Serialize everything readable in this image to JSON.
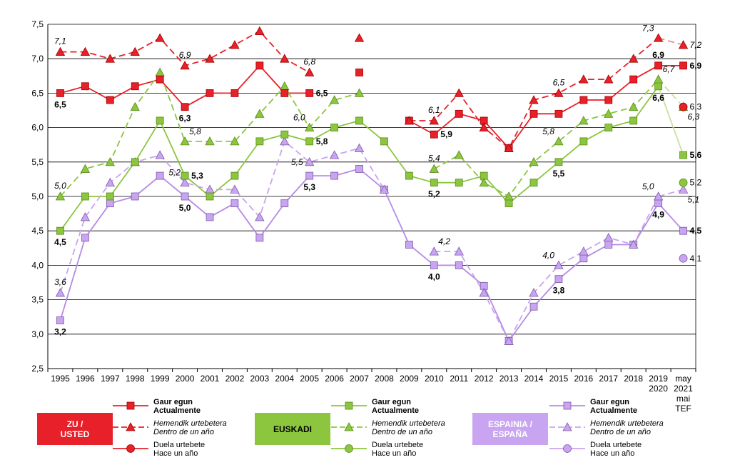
{
  "chart_data": {
    "type": "line",
    "ylim": [
      2.5,
      7.5
    ],
    "y_ticks": [
      "2,5",
      "3,0",
      "3,5",
      "4,0",
      "4,5",
      "5,0",
      "5,5",
      "6,0",
      "6,5",
      "7,0",
      "7,5"
    ],
    "categories": [
      "1995",
      "1996",
      "1997",
      "1998",
      "1999",
      "2000",
      "2001",
      "2002",
      "2003",
      "2004",
      "2005",
      "2006",
      "2007",
      "2008",
      "2009",
      "2010",
      "2011",
      "2012",
      "2013",
      "2014",
      "2015",
      "2016",
      "2017",
      "2018",
      "2019",
      "may"
    ],
    "category_sublabels": {
      "2019": "2020",
      "may": [
        "2021",
        "mai",
        "TEF"
      ]
    },
    "grid": "horizontal",
    "colors": {
      "zu": "#e8202a",
      "euskadi": "#8cc63f",
      "espainia": "#c9a4f0",
      "espainia_line": "#b48ae6",
      "euskadi_light": "#c9e0a3",
      "zu_light": "#f08a8a",
      "marker_edge": "#7a5aa8"
    },
    "series": [
      {
        "group": "zu",
        "kind": "current",
        "dash": false,
        "values": [
          6.5,
          6.6,
          6.4,
          6.6,
          6.7,
          6.3,
          6.5,
          6.5,
          6.9,
          6.5,
          6.5,
          null,
          6.8,
          null,
          6.1,
          5.9,
          6.2,
          6.1,
          5.7,
          6.2,
          6.2,
          6.4,
          6.4,
          6.7,
          6.9,
          6.9
        ]
      },
      {
        "group": "zu",
        "kind": "expected",
        "dash": true,
        "values": [
          7.1,
          7.1,
          7.0,
          7.1,
          7.3,
          6.9,
          7.0,
          7.2,
          7.4,
          7.0,
          6.8,
          null,
          7.3,
          null,
          6.1,
          6.1,
          6.5,
          6.0,
          5.7,
          6.4,
          6.5,
          6.7,
          6.7,
          7.0,
          7.3,
          7.2
        ]
      },
      {
        "group": "zu",
        "kind": "year_ago",
        "values": [
          null,
          null,
          null,
          null,
          null,
          null,
          null,
          null,
          null,
          null,
          null,
          null,
          null,
          null,
          null,
          null,
          null,
          null,
          null,
          null,
          null,
          null,
          null,
          null,
          null,
          6.3
        ]
      },
      {
        "group": "euskadi",
        "kind": "current",
        "dash": false,
        "values": [
          4.5,
          5.0,
          5.0,
          5.5,
          6.1,
          5.3,
          5.0,
          5.3,
          5.8,
          5.9,
          5.8,
          6.0,
          6.1,
          5.8,
          5.3,
          5.2,
          5.2,
          5.3,
          4.9,
          5.2,
          5.5,
          5.8,
          6.0,
          6.1,
          6.6,
          5.6
        ]
      },
      {
        "group": "euskadi",
        "kind": "expected",
        "dash": true,
        "values": [
          5.0,
          5.4,
          5.5,
          6.3,
          6.8,
          5.8,
          5.8,
          5.8,
          6.2,
          6.6,
          6.0,
          6.4,
          6.5,
          null,
          null,
          5.4,
          5.6,
          5.2,
          5.0,
          5.5,
          5.8,
          6.1,
          6.2,
          6.3,
          6.7,
          6.3
        ]
      },
      {
        "group": "euskadi",
        "kind": "year_ago",
        "values": [
          null,
          null,
          null,
          null,
          null,
          null,
          null,
          null,
          null,
          null,
          null,
          null,
          null,
          null,
          null,
          null,
          null,
          null,
          null,
          null,
          null,
          null,
          null,
          null,
          null,
          5.2
        ]
      },
      {
        "group": "espainia",
        "kind": "current",
        "dash": false,
        "values": [
          3.2,
          4.4,
          4.9,
          5.0,
          5.3,
          5.0,
          4.7,
          4.9,
          4.4,
          4.9,
          5.3,
          5.3,
          5.4,
          5.1,
          4.3,
          4.0,
          4.0,
          3.7,
          2.9,
          3.4,
          3.8,
          4.1,
          4.3,
          4.3,
          4.9,
          4.5
        ]
      },
      {
        "group": "espainia",
        "kind": "expected",
        "dash": true,
        "values": [
          3.6,
          4.7,
          5.2,
          5.5,
          5.6,
          5.2,
          5.1,
          5.1,
          4.7,
          5.8,
          5.5,
          5.6,
          5.7,
          5.1,
          null,
          4.2,
          4.2,
          3.6,
          2.9,
          3.6,
          4.0,
          4.2,
          4.4,
          4.3,
          5.0,
          5.1
        ]
      },
      {
        "group": "espainia",
        "kind": "year_ago",
        "values": [
          null,
          null,
          null,
          null,
          null,
          null,
          null,
          null,
          null,
          null,
          null,
          null,
          null,
          null,
          null,
          null,
          null,
          null,
          null,
          null,
          null,
          null,
          null,
          null,
          null,
          4.1
        ]
      }
    ],
    "data_labels": [
      {
        "group": "zu",
        "kind": "current",
        "i": 0,
        "text": "6,5",
        "pos": "below"
      },
      {
        "group": "zu",
        "kind": "current",
        "i": 5,
        "text": "6,3",
        "pos": "below"
      },
      {
        "group": "zu",
        "kind": "current",
        "i": 10,
        "text": "6,5",
        "pos": "right"
      },
      {
        "group": "zu",
        "kind": "current",
        "i": 15,
        "text": "5,9",
        "pos": "right"
      },
      {
        "group": "zu",
        "kind": "current",
        "i": 24,
        "text": "6,9",
        "pos": "above"
      },
      {
        "group": "zu",
        "kind": "current",
        "i": 25,
        "text": "6,9",
        "pos": "right"
      },
      {
        "group": "zu",
        "kind": "expected",
        "i": 0,
        "text": "7,1",
        "pos": "above"
      },
      {
        "group": "zu",
        "kind": "expected",
        "i": 5,
        "text": "6,9",
        "pos": "above"
      },
      {
        "group": "zu",
        "kind": "expected",
        "i": 10,
        "text": "6,8",
        "pos": "above"
      },
      {
        "group": "zu",
        "kind": "expected",
        "i": 15,
        "text": "6,1",
        "pos": "above"
      },
      {
        "group": "zu",
        "kind": "expected",
        "i": 20,
        "text": "6,5",
        "pos": "above"
      },
      {
        "group": "zu",
        "kind": "expected",
        "i": 24,
        "text": "7,3",
        "pos": "aboveleft"
      },
      {
        "group": "zu",
        "kind": "expected",
        "i": 25,
        "text": "7,2",
        "pos": "right"
      },
      {
        "group": "zu",
        "kind": "year_ago",
        "i": 25,
        "text": "6,3",
        "pos": "right"
      },
      {
        "group": "euskadi",
        "kind": "current",
        "i": 0,
        "text": "4,5",
        "pos": "below"
      },
      {
        "group": "euskadi",
        "kind": "current",
        "i": 5,
        "text": "5,3",
        "pos": "right"
      },
      {
        "group": "euskadi",
        "kind": "current",
        "i": 10,
        "text": "5,8",
        "pos": "right"
      },
      {
        "group": "euskadi",
        "kind": "current",
        "i": 15,
        "text": "5,2",
        "pos": "below"
      },
      {
        "group": "euskadi",
        "kind": "current",
        "i": 20,
        "text": "5,5",
        "pos": "below"
      },
      {
        "group": "euskadi",
        "kind": "current",
        "i": 24,
        "text": "6,6",
        "pos": "below"
      },
      {
        "group": "euskadi",
        "kind": "current",
        "i": 25,
        "text": "5,6",
        "pos": "right"
      },
      {
        "group": "euskadi",
        "kind": "expected",
        "i": 0,
        "text": "5,0",
        "pos": "above"
      },
      {
        "group": "euskadi",
        "kind": "expected",
        "i": 5,
        "text": "5,8",
        "pos": "aboveright"
      },
      {
        "group": "euskadi",
        "kind": "expected",
        "i": 10,
        "text": "6,0",
        "pos": "aboveleft"
      },
      {
        "group": "euskadi",
        "kind": "expected",
        "i": 15,
        "text": "5,4",
        "pos": "above"
      },
      {
        "group": "euskadi",
        "kind": "expected",
        "i": 20,
        "text": "5,8",
        "pos": "aboveleft"
      },
      {
        "group": "euskadi",
        "kind": "expected",
        "i": 24,
        "text": "6,7",
        "pos": "aboveright"
      },
      {
        "group": "euskadi",
        "kind": "expected",
        "i": 25,
        "text": "6,3",
        "pos": "belowright"
      },
      {
        "group": "euskadi",
        "kind": "year_ago",
        "i": 25,
        "text": "5,2",
        "pos": "right"
      },
      {
        "group": "espainia",
        "kind": "current",
        "i": 0,
        "text": "3,2",
        "pos": "below"
      },
      {
        "group": "espainia",
        "kind": "current",
        "i": 5,
        "text": "5,0",
        "pos": "below"
      },
      {
        "group": "espainia",
        "kind": "current",
        "i": 10,
        "text": "5,3",
        "pos": "below"
      },
      {
        "group": "espainia",
        "kind": "current",
        "i": 15,
        "text": "4,0",
        "pos": "below"
      },
      {
        "group": "espainia",
        "kind": "current",
        "i": 20,
        "text": "3,8",
        "pos": "below"
      },
      {
        "group": "espainia",
        "kind": "current",
        "i": 24,
        "text": "4,9",
        "pos": "below"
      },
      {
        "group": "espainia",
        "kind": "current",
        "i": 25,
        "text": "4,5",
        "pos": "right"
      },
      {
        "group": "espainia",
        "kind": "expected",
        "i": 0,
        "text": "3,6",
        "pos": "above"
      },
      {
        "group": "espainia",
        "kind": "expected",
        "i": 5,
        "text": "5,2",
        "pos": "aboveleft"
      },
      {
        "group": "espainia",
        "kind": "expected",
        "i": 10,
        "text": "5,5",
        "pos": "left"
      },
      {
        "group": "espainia",
        "kind": "expected",
        "i": 15,
        "text": "4,2",
        "pos": "aboveright"
      },
      {
        "group": "espainia",
        "kind": "expected",
        "i": 20,
        "text": "4,0",
        "pos": "aboveleft"
      },
      {
        "group": "espainia",
        "kind": "expected",
        "i": 24,
        "text": "5,0",
        "pos": "aboveleft"
      },
      {
        "group": "espainia",
        "kind": "expected",
        "i": 25,
        "text": "5,1",
        "pos": "belowright"
      },
      {
        "group": "espainia",
        "kind": "year_ago",
        "i": 25,
        "text": "4,1",
        "pos": "right"
      }
    ]
  },
  "legend": {
    "groups": [
      {
        "key": "zu",
        "box_lines": [
          "ZU /",
          "USTED"
        ],
        "entries": [
          {
            "kind": "current",
            "lines": [
              "Gaur egun",
              "Actualmente"
            ]
          },
          {
            "kind": "expected",
            "lines": [
              "Hemendik urtebetera",
              "Dentro de un año"
            ]
          },
          {
            "kind": "year_ago",
            "lines": [
              "Duela urtebete",
              "Hace un año"
            ]
          }
        ]
      },
      {
        "key": "euskadi",
        "box_lines": [
          "EUSKADI"
        ],
        "entries": [
          {
            "kind": "current",
            "lines": [
              "Gaur egun",
              "Actualmente"
            ]
          },
          {
            "kind": "expected",
            "lines": [
              "Hemendik urtebetera",
              "Dentro de un año"
            ]
          },
          {
            "kind": "year_ago",
            "lines": [
              "Duela urtebete",
              "Hace un año"
            ]
          }
        ]
      },
      {
        "key": "espainia",
        "box_lines": [
          "ESPAINIA /",
          "ESPAÑA"
        ],
        "entries": [
          {
            "kind": "current",
            "lines": [
              "Gaur egun",
              "Actualmente"
            ]
          },
          {
            "kind": "expected",
            "lines": [
              "Hemendik urtebetera",
              "Dentro de un año"
            ]
          },
          {
            "kind": "year_ago",
            "lines": [
              "Duela urtebete",
              "Hace un año"
            ]
          }
        ]
      }
    ]
  }
}
